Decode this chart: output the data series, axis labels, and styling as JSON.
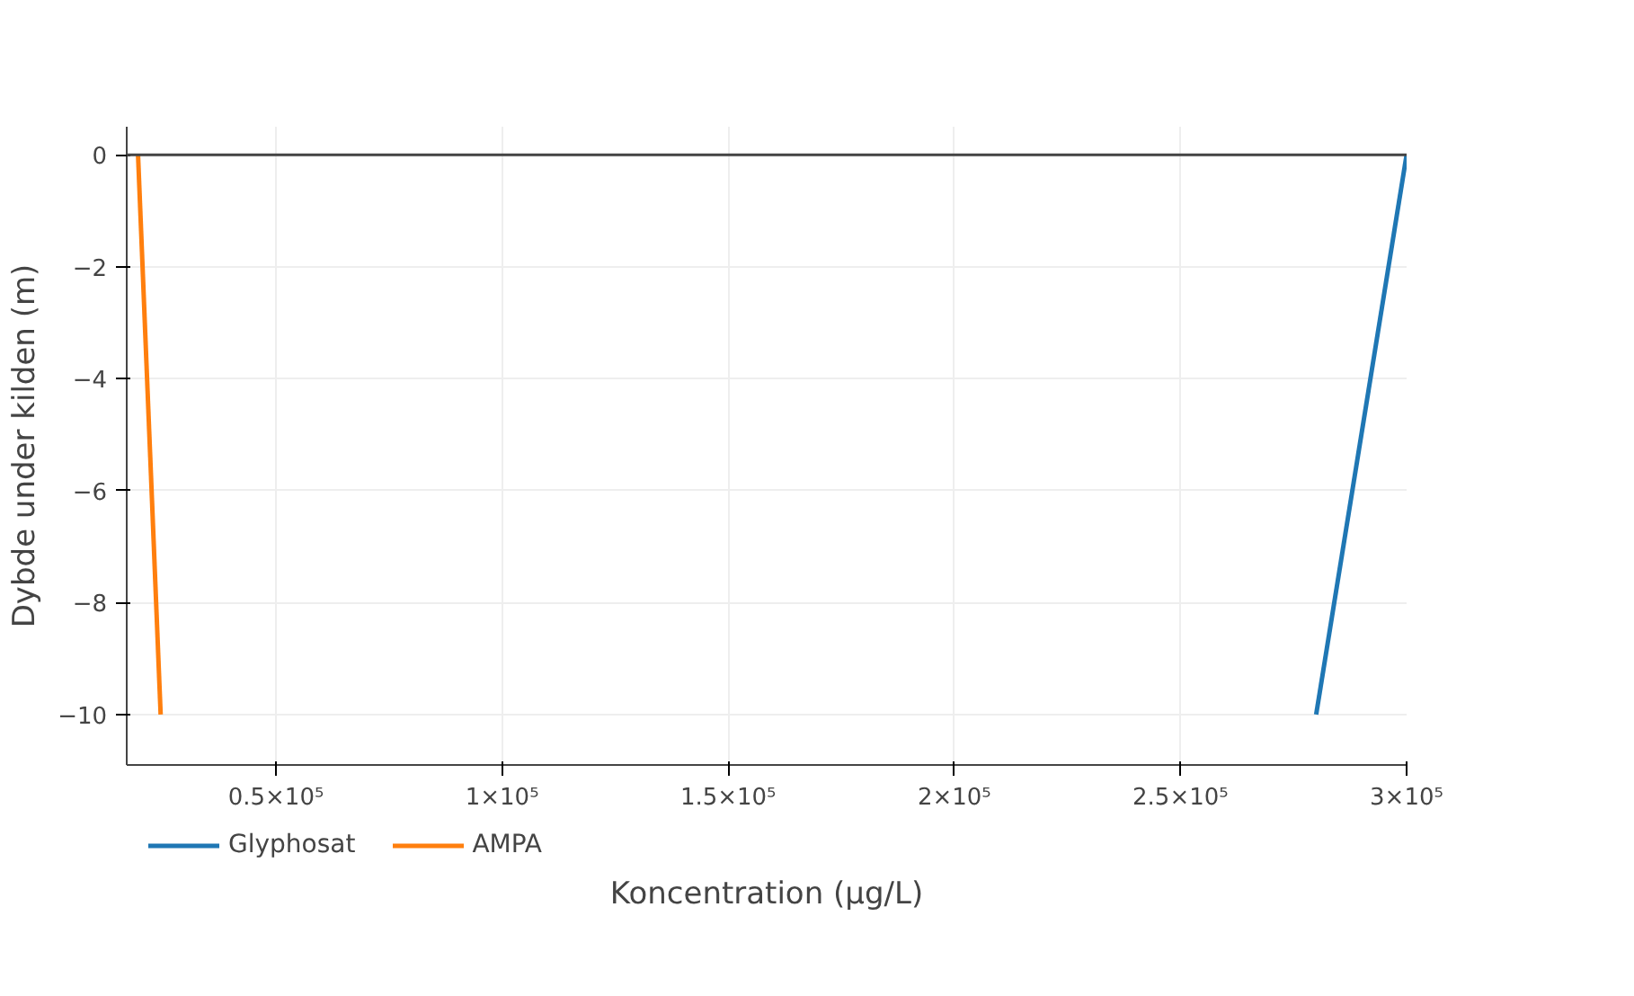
{
  "chart_data": {
    "type": "line",
    "xlabel": "Koncentration (µg/L)",
    "ylabel": "Dybde under kilden (m)",
    "series": [
      {
        "name": "Glyphosat",
        "color": "#1f77b4",
        "x": [
          300000,
          280000
        ],
        "values": [
          0,
          -10
        ]
      },
      {
        "name": "AMPA",
        "color": "#ff7f0e",
        "x": [
          19500,
          24500
        ],
        "values": [
          0,
          -10
        ]
      }
    ],
    "xlim": [
      17000,
      300000
    ],
    "xticks": [
      {
        "value": 50000,
        "label": "0.5×10⁵"
      },
      {
        "value": 100000,
        "label": "1×10⁵"
      },
      {
        "value": 150000,
        "label": "1.5×10⁵"
      },
      {
        "value": 200000,
        "label": "2×10⁵"
      },
      {
        "value": 250000,
        "label": "2.5×10⁵"
      },
      {
        "value": 300000,
        "label": "3×10⁵"
      }
    ],
    "ylim": [
      -10.9,
      0.5
    ],
    "yticks": [
      {
        "value": 0,
        "label": "0"
      },
      {
        "value": -2,
        "label": "−2"
      },
      {
        "value": -4,
        "label": "−4"
      },
      {
        "value": -6,
        "label": "−6"
      },
      {
        "value": -8,
        "label": "−8"
      },
      {
        "value": -10,
        "label": "−10"
      }
    ],
    "ref_lines": [
      {
        "axis": "y",
        "value": 0,
        "color": "#444444"
      }
    ],
    "grid": true,
    "legend": "bottom",
    "line_style": "solid",
    "marker": "none"
  }
}
